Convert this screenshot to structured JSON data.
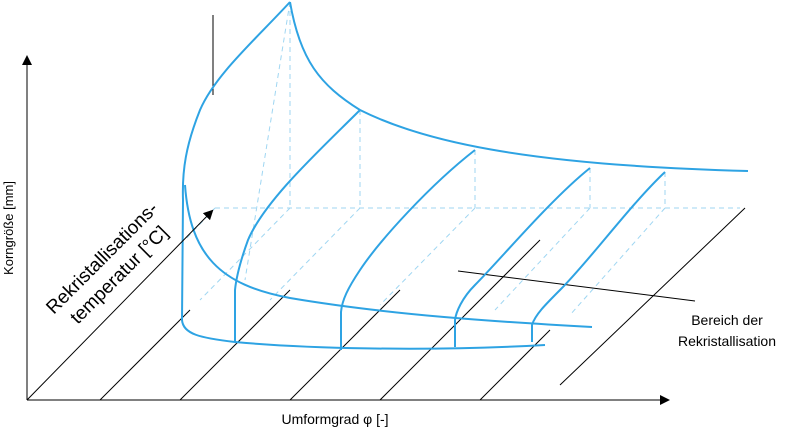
{
  "axes": {
    "y_label": "Korngröße [mm]",
    "x_label": "Umformgrad φ [-]",
    "z_label_line1": "Rekristallisations-",
    "z_label_line2": "temperatur [°C]"
  },
  "annotation": {
    "line1": "Bereich der",
    "line2": "Rekristallisation"
  }
}
